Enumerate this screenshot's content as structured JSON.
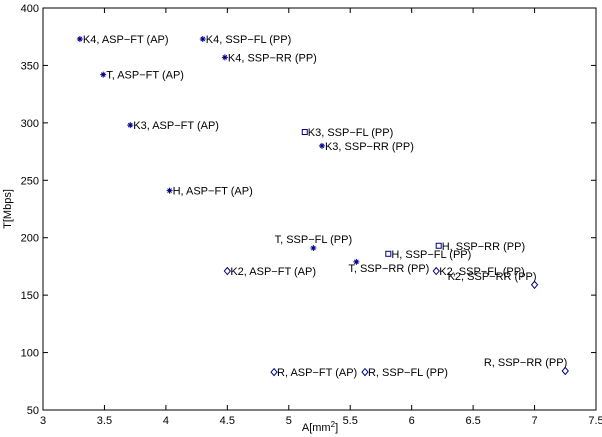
{
  "chart_data": {
    "type": "scatter",
    "xlabel": "A[mm",
    "xlabel_sup": "2",
    "xlabel_end": "]",
    "ylabel": "T[Mbps]",
    "xlim": [
      3,
      7.5
    ],
    "ylim": [
      50,
      400
    ],
    "xticks": [
      3,
      3.5,
      4,
      4.5,
      5,
      5.5,
      6,
      6.5,
      7,
      7.5
    ],
    "xtick_labels": [
      "3",
      "3.5",
      "4",
      "4.5",
      "5",
      "5.5",
      "6",
      "6.5",
      "7",
      "7.5"
    ],
    "yticks": [
      50,
      100,
      150,
      200,
      250,
      300,
      350,
      400
    ],
    "ytick_labels": [
      "50",
      "100",
      "150",
      "200",
      "250",
      "300",
      "350",
      "400"
    ],
    "grid": false,
    "marker_color": "#00008b",
    "points": [
      {
        "label": "K4, ASP−FT (AP)",
        "x": 3.3,
        "y": 373,
        "marker": "star",
        "label_pos": "right"
      },
      {
        "label": "K4, SSP−FL (PP)",
        "x": 4.3,
        "y": 373,
        "marker": "star",
        "label_pos": "right"
      },
      {
        "label": "K4, SSP−RR (PP)",
        "x": 4.48,
        "y": 357,
        "marker": "star",
        "label_pos": "right"
      },
      {
        "label": "T, ASP−FT (AP)",
        "x": 3.49,
        "y": 342,
        "marker": "star",
        "label_pos": "right"
      },
      {
        "label": "K3, ASP−FT (AP)",
        "x": 3.71,
        "y": 298,
        "marker": "star",
        "label_pos": "right"
      },
      {
        "label": "K3, SSP−FL (PP)",
        "x": 5.13,
        "y": 292,
        "marker": "square",
        "label_pos": "right"
      },
      {
        "label": "K3, SSP−RR (PP)",
        "x": 5.27,
        "y": 280,
        "marker": "star",
        "label_pos": "right"
      },
      {
        "label": "H, ASP−FT (AP)",
        "x": 4.03,
        "y": 241,
        "marker": "star",
        "label_pos": "right"
      },
      {
        "label": "T, SSP−FL (PP)",
        "x": 5.2,
        "y": 191,
        "marker": "star",
        "label_pos": "above-center"
      },
      {
        "label": "H, SSP−RR (PP)",
        "x": 6.22,
        "y": 193,
        "marker": "square",
        "label_pos": "right"
      },
      {
        "label": "H, SSP−FL (PP)",
        "x": 5.81,
        "y": 186,
        "marker": "square",
        "label_pos": "right"
      },
      {
        "label": "T, SSP−RR (PP)",
        "x": 5.55,
        "y": 179,
        "marker": "star",
        "label_pos": "right-below"
      },
      {
        "label": "K2, ASP−FT (AP)",
        "x": 4.5,
        "y": 171,
        "marker": "diamond",
        "label_pos": "right"
      },
      {
        "label": "K2, SSP−FL (PP)",
        "x": 6.2,
        "y": 171,
        "marker": "diamond",
        "label_pos": "right"
      },
      {
        "label": "K2, SSP−RR (PP)",
        "x": 7.0,
        "y": 159,
        "marker": "diamond",
        "label_pos": "above-left"
      },
      {
        "label": "R, ASP−FT (AP)",
        "x": 4.88,
        "y": 83,
        "marker": "diamond",
        "label_pos": "right"
      },
      {
        "label": "R, SSP−FL (PP)",
        "x": 5.62,
        "y": 83,
        "marker": "diamond",
        "label_pos": "right"
      },
      {
        "label": "R, SSP−RR (PP)",
        "x": 7.25,
        "y": 84,
        "marker": "diamond",
        "label_pos": "above-left"
      }
    ]
  }
}
